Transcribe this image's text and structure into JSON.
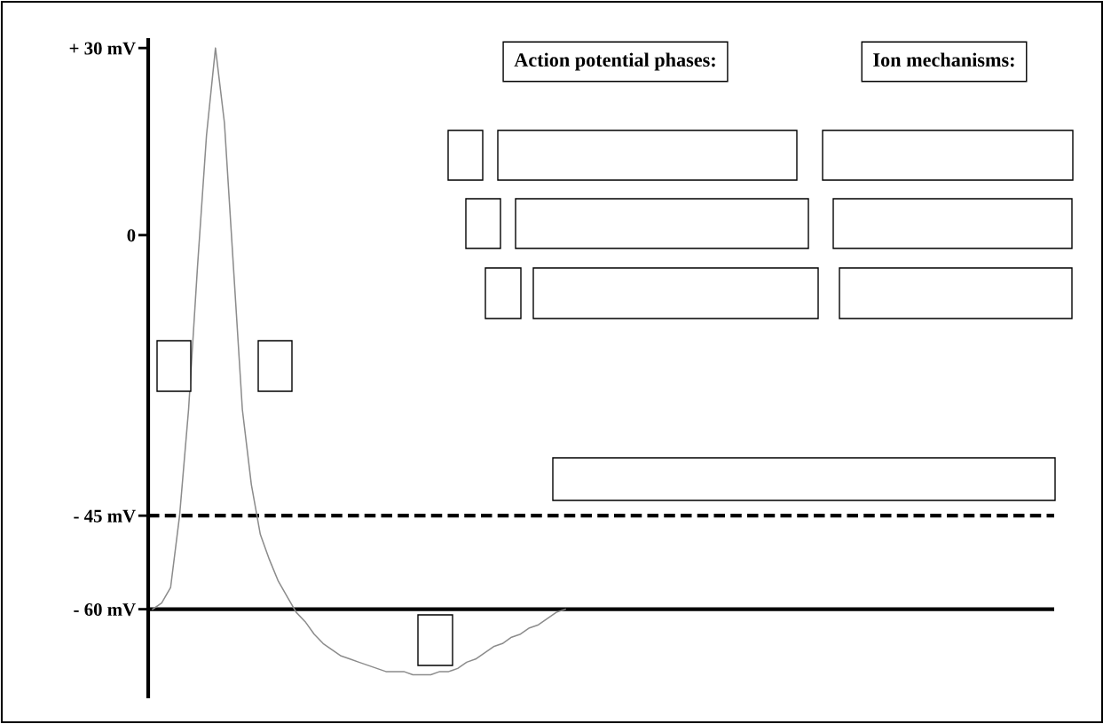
{
  "chart_data": {
    "type": "line",
    "categories": [
      null,
      null,
      null,
      null,
      null,
      null,
      null,
      null,
      null,
      null,
      null,
      null,
      null,
      null,
      null,
      null,
      null,
      null,
      null,
      null,
      null,
      null,
      null,
      null,
      null,
      null,
      null,
      null,
      null,
      null,
      null,
      null,
      null,
      null,
      null,
      null,
      null,
      null,
      null,
      null,
      null,
      null,
      null,
      null,
      null,
      null,
      null,
      null,
      null,
      null,
      null,
      null,
      null,
      null,
      null,
      null,
      null,
      null,
      null,
      null,
      null,
      null,
      null,
      null,
      null,
      null,
      null,
      null,
      null,
      null,
      null,
      null,
      null,
      null,
      null,
      null,
      null,
      null,
      null,
      null,
      null,
      null,
      null,
      null,
      null,
      null,
      null,
      null,
      null,
      null,
      null,
      null,
      null,
      null,
      null,
      null,
      null,
      null,
      null,
      null,
      null
    ],
    "series": [
      {
        "color": "#8c8c8c",
        "values": [
          -60,
          -59,
          -56.5,
          -45,
          -28,
          -5,
          16,
          30,
          18,
          -5,
          -28,
          -40,
          -48,
          -52,
          -55.5,
          -58,
          -60.5,
          -62,
          -64,
          -65.5,
          -66.5,
          -67.5,
          -68,
          -68.5,
          -69,
          -69.5,
          -70,
          -70,
          -70,
          -70.5,
          -70.5,
          -70.5,
          -70,
          -70,
          -69.5,
          -68.5,
          -68,
          -67,
          -66,
          -65.5,
          -64.5,
          -64,
          -63,
          -62.5,
          -61.5,
          -60.5,
          -60,
          null,
          null,
          null,
          null,
          null,
          null,
          null,
          null,
          null,
          null,
          null,
          null,
          null,
          null,
          null,
          null,
          null,
          null,
          null,
          null,
          null,
          null,
          null,
          null,
          null,
          null,
          null,
          null,
          null,
          null,
          null,
          null,
          null,
          null,
          null,
          null,
          null,
          null,
          null,
          null,
          null,
          null,
          null,
          null,
          null,
          null,
          null,
          null,
          null,
          null,
          null,
          null,
          null,
          null
        ]
      }
    ],
    "ylim": [
      -74,
      31.3
    ],
    "yticks": [
      {
        "value": 30,
        "label": "+ 30 mV"
      },
      0,
      {
        "value": -45,
        "label": "- 45 mV"
      },
      {
        "value": -60,
        "label": "- 60 mV"
      }
    ],
    "ref_lines": [
      {
        "axis": "y",
        "value": -45,
        "color": "#000000",
        "line_style": "dashed"
      },
      {
        "axis": "y",
        "value": -60,
        "color": "#000000",
        "line_style": "solid"
      }
    ],
    "annotations": [
      "Action potential phases:",
      "Ion mechanisms:"
    ],
    "grid": false,
    "legend": false,
    "marker": "none",
    "line_style": "solid"
  }
}
